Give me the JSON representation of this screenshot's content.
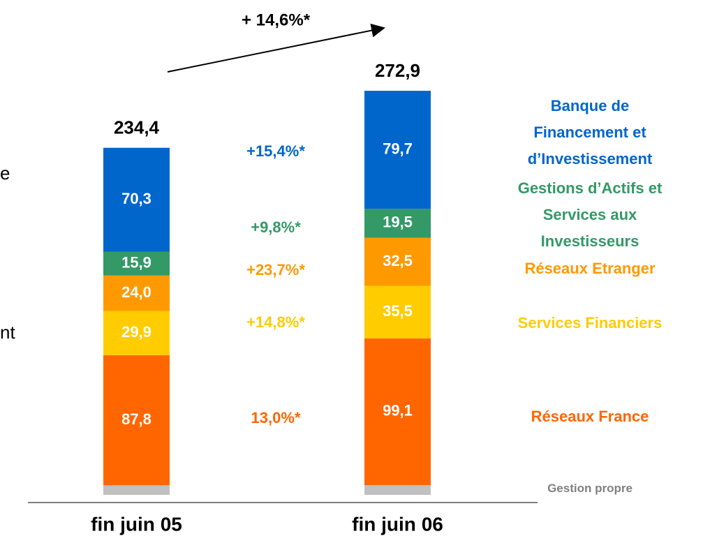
{
  "chart_data": {
    "type": "stacked_bar",
    "categories": [
      "fin juin 05",
      "fin juin 06"
    ],
    "ylim": [
      0,
      280
    ],
    "series": [
      {
        "name": "Gestion propre",
        "color": "#c0c0c0",
        "text_color": "#808080",
        "values": [
          6.5,
          6.6
        ]
      },
      {
        "name": "Réseaux France",
        "color": "#ff6600",
        "text_color": "#ff6600",
        "values": [
          87.8,
          99.1
        ],
        "value_labels": [
          "87,8",
          "99,1"
        ],
        "growth": "13,0%*"
      },
      {
        "name": "Services Financiers",
        "color": "#ffcc00",
        "text_color": "#ffcc00",
        "values": [
          29.9,
          35.5
        ],
        "value_labels": [
          "29,9",
          "35,5"
        ],
        "growth": "+14,8%*"
      },
      {
        "name": "Réseaux Etranger",
        "color": "#ff9900",
        "text_color": "#ff9900",
        "values": [
          24.0,
          32.5
        ],
        "value_labels": [
          "24,0",
          "32,5"
        ],
        "growth": "+23,7%*"
      },
      {
        "name": "Gestions d’Actifs et\nServices aux\nInvestisseurs",
        "color": "#339966",
        "text_color": "#339966",
        "values": [
          15.9,
          19.5
        ],
        "value_labels": [
          "15,9",
          "19,5"
        ],
        "growth": "+9,8%*"
      },
      {
        "name": "Banque de\nFinancement et\nd’Investissement",
        "color": "#0066cc",
        "text_color": "#0066cc",
        "values": [
          70.3,
          79.7
        ],
        "value_labels": [
          "70,3",
          "79,7"
        ],
        "growth": "+15,4%*"
      }
    ],
    "totals": {
      "values": [
        234.4,
        272.9
      ],
      "value_labels": [
        "234,4",
        "272,9"
      ]
    },
    "annotation": "+ 14,6%*",
    "left_fragments": [
      "e",
      "nt"
    ]
  }
}
